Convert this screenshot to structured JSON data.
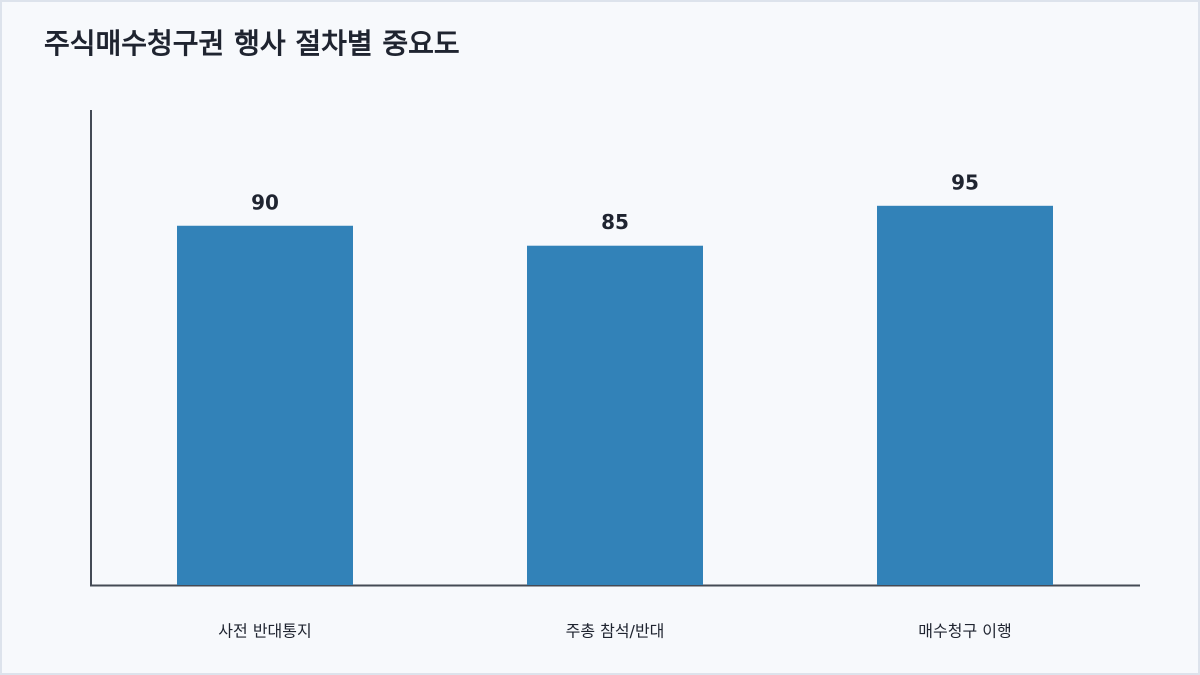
{
  "chart_data": {
    "type": "bar",
    "title": "주식매수청구권 행사 절차별 중요도",
    "categories": [
      "사전 반대통지",
      "주총 참석/반대",
      "매수청구 이행"
    ],
    "values": [
      90,
      85,
      95
    ],
    "color": "#3282b8",
    "ylim": [
      0,
      119
    ],
    "show_value_labels": true
  }
}
